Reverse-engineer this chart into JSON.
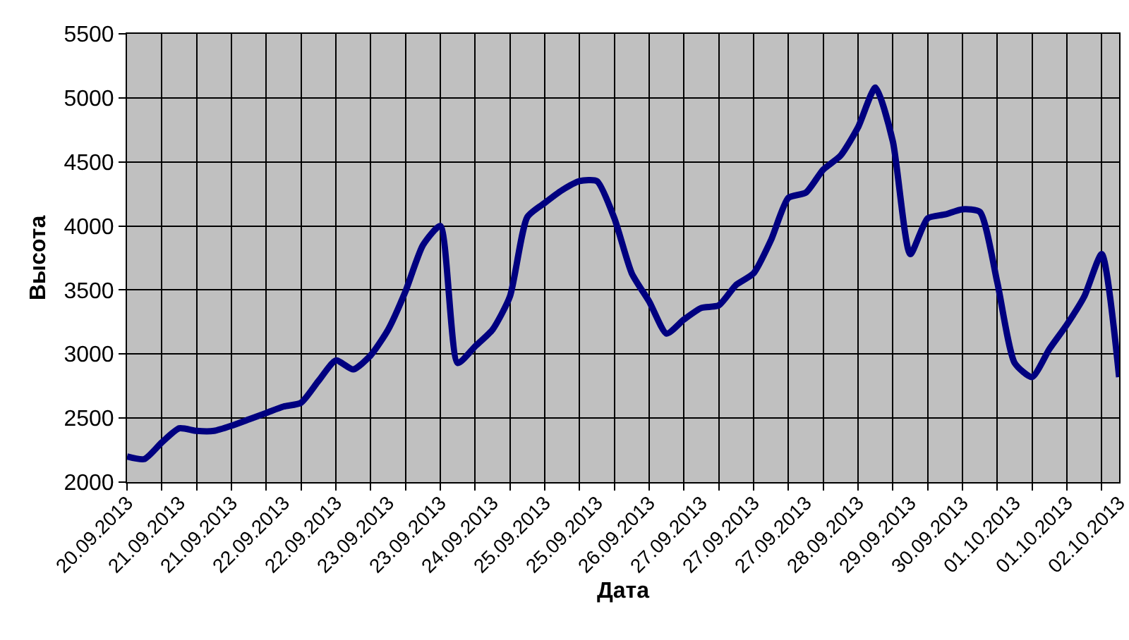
{
  "chart_data": {
    "type": "line",
    "xlabel": "Дата",
    "ylabel": "Высота",
    "categories": [
      "20.09.2013",
      null,
      null,
      "21.09.2013",
      null,
      null,
      "21.09.2013",
      null,
      null,
      "22.09.2013",
      null,
      null,
      "22.09.2013",
      null,
      null,
      "23.09.2013",
      null,
      null,
      "23.09.2013",
      null,
      null,
      "24.09.2013",
      null,
      null,
      "25.09.2013",
      null,
      null,
      "25.09.2013",
      null,
      null,
      "26.09.2013",
      null,
      null,
      "27.09.2013",
      null,
      null,
      "27.09.2013",
      null,
      null,
      "27.09.2013",
      null,
      null,
      "28.09.2013",
      null,
      null,
      "29.09.2013",
      null,
      null,
      "30.09.2013",
      null,
      null,
      "01.10.2013",
      null,
      null,
      "01.10.2013",
      null,
      null,
      "02.10.2013"
    ],
    "series": [
      {
        "color": "#000080",
        "values": [
          2200,
          2180,
          2310,
          2420,
          2400,
          2400,
          2440,
          2490,
          2540,
          2590,
          2620,
          2790,
          2950,
          2880,
          2990,
          3190,
          3490,
          3850,
          4000,
          2930,
          3060,
          3190,
          3450,
          4070,
          4180,
          4280,
          4350,
          4350,
          4060,
          3630,
          3410,
          3160,
          3270,
          3360,
          3380,
          3540,
          3630,
          3890,
          4220,
          4260,
          4440,
          4550,
          4770,
          5080,
          4660,
          3780,
          4060,
          4090,
          4130,
          4110,
          3560,
          2930,
          2820,
          3040,
          3230,
          3450,
          3780,
          2820
        ]
      }
    ],
    "ylim": [
      2000,
      5500
    ],
    "yticks": [
      2000,
      2500,
      3000,
      3500,
      4000,
      4500,
      5000,
      5500
    ],
    "grid": true,
    "marker": "none",
    "line_style": "solid"
  }
}
